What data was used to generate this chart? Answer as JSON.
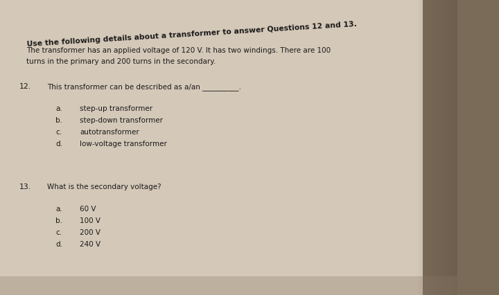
{
  "bg_color": "#7a6a58",
  "paper_color": "#d4c8b8",
  "paper_right_color": "#c0b4a4",
  "text_color": "#1a1a1a",
  "bold_line": "Use the following details about a transformer to answer Questions 12 and 13.",
  "intro_line1": "The transformer has an applied voltage of 120 V. It has two windings. There are 100",
  "intro_line2": "turns in the primary and 200 turns in the secondary.",
  "q12_label": "12.",
  "q12_text": "This transformer can be described as a/an __________.",
  "q12_options": [
    [
      "a.",
      "step-up transformer"
    ],
    [
      "b.",
      "step-down transformer"
    ],
    [
      "c.",
      "autotransformer"
    ],
    [
      "d.",
      "low-voltage transformer"
    ]
  ],
  "q13_label": "13.",
  "q13_text": "What is the secondary voltage?",
  "q13_options": [
    [
      "a.",
      "60 V"
    ],
    [
      "b.",
      "100 V"
    ],
    [
      "c.",
      "200 V"
    ],
    [
      "d.",
      "240 V"
    ]
  ],
  "header_rotation": 3.5,
  "header_fontsize": 7.8,
  "body_fontsize": 7.5,
  "option_fontsize": 7.5,
  "label_fontsize": 7.8
}
